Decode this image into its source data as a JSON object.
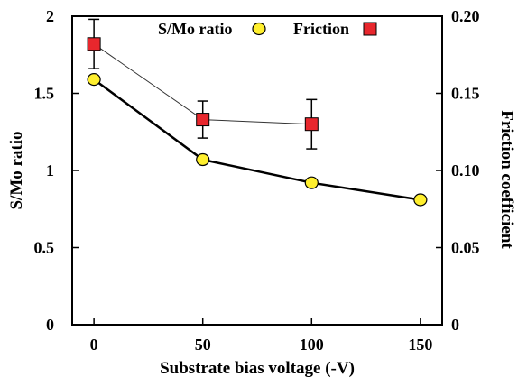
{
  "chart_data": {
    "type": "line",
    "title": "",
    "x": [
      0,
      50,
      100,
      150
    ],
    "xlabel": "Substrate bias voltage (-V)",
    "xlim": [
      -10,
      160
    ],
    "x_ticks": [
      "0",
      "50",
      "100",
      "150"
    ],
    "y_left": {
      "label": "S/Mo ratio",
      "lim": [
        0,
        2
      ],
      "ticks": [
        "0",
        "0.5",
        "1",
        "1.5",
        "2"
      ]
    },
    "y_right": {
      "label": "Friction coefficient",
      "lim": [
        0,
        0.2
      ],
      "ticks": [
        "0",
        "0.05",
        "0.10",
        "0.15",
        "0.20"
      ]
    },
    "grid": false,
    "legend_position": "top",
    "series": [
      {
        "name": "S/Mo ratio",
        "axis": "left",
        "marker": "circle",
        "color": "#ffef2e",
        "x": [
          0,
          50,
          100,
          150
        ],
        "values": [
          1.59,
          1.07,
          0.92,
          0.81
        ]
      },
      {
        "name": "Friction",
        "axis": "right",
        "marker": "square",
        "color": "#e8272d",
        "x": [
          0,
          50,
          100
        ],
        "values": [
          0.182,
          0.133,
          0.13
        ],
        "error": [
          0.016,
          0.012,
          0.016
        ]
      }
    ]
  }
}
